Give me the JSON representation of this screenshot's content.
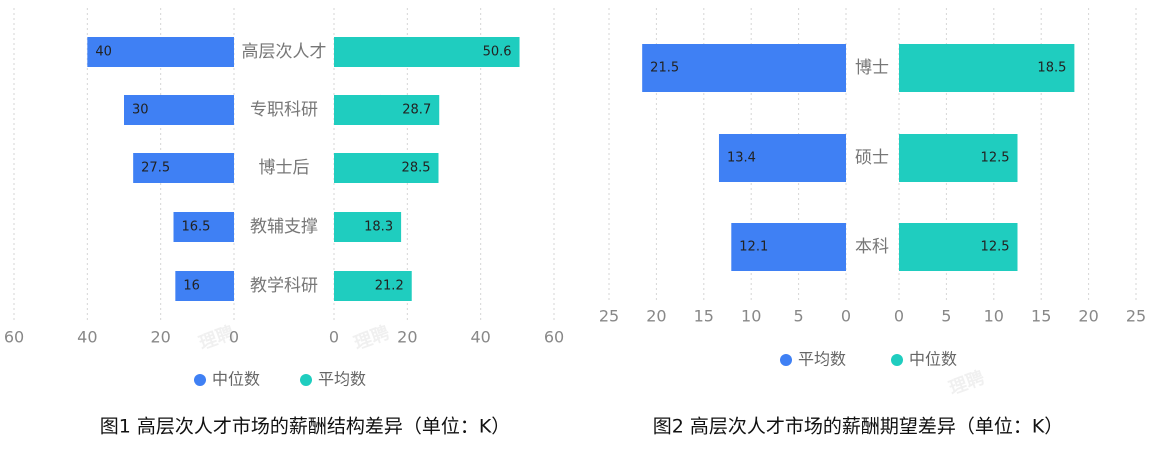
{
  "watermark": "理聘",
  "chart_data": [
    {
      "type": "butterfly",
      "title": "图1 高层次人才市场的薪酬结构差异（单位：K）",
      "categories": [
        "高层次人才",
        "专职科研",
        "博士后",
        "教辅支撑",
        "教学科研"
      ],
      "series": [
        {
          "name": "中位数",
          "color": "#3f80f4",
          "values": [
            40,
            30,
            27.5,
            16.5,
            16
          ]
        },
        {
          "name": "平均数",
          "color": "#1fcdbf",
          "values": [
            50.6,
            28.7,
            28.5,
            18.3,
            21.2
          ]
        }
      ],
      "xlim": [
        0,
        60
      ],
      "xticks": [
        0,
        20,
        40,
        60
      ],
      "grid": true
    },
    {
      "type": "butterfly",
      "title": "图2 高层次人才市场的薪酬期望差异（单位：K）",
      "categories": [
        "博士",
        "硕士",
        "本科"
      ],
      "series": [
        {
          "name": "平均数",
          "color": "#3f80f4",
          "values": [
            21.5,
            13.4,
            12.1
          ]
        },
        {
          "name": "中位数",
          "color": "#1fcdbf",
          "values": [
            18.5,
            12.5,
            12.5
          ]
        }
      ],
      "xlim": [
        0,
        25
      ],
      "xticks": [
        0,
        5,
        10,
        15,
        20,
        25
      ],
      "grid": true
    }
  ]
}
